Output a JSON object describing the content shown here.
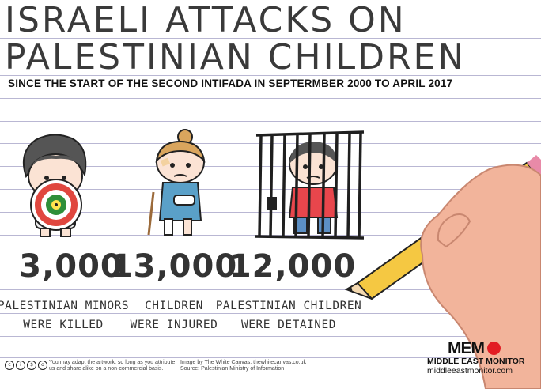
{
  "title": {
    "line1": "ISRAELI ATTACKS ON",
    "line2": "PALESTINIAN CHILDREN"
  },
  "subtitle": "SINCE THE START OF THE SECOND INTIFADA IN SEPTERMBER 2000 TO APRIL 2017",
  "stats": [
    {
      "number": "3,000",
      "label_line1": "PALESTINIAN MINORS",
      "label_line2": "WERE KILLED"
    },
    {
      "number": "13,000",
      "label_line1": "CHILDREN",
      "label_line2": "WERE INJURED"
    },
    {
      "number": "12,000",
      "label_line1": "PALESTINIAN CHILDREN",
      "label_line2": "WERE DETAINED"
    }
  ],
  "footer": {
    "license_line1": "You may adapt the artwork, so long as you attribute",
    "license_line2": "us and share alike on a non-commercial basis.",
    "credit_line1": "Image by The White Canvas: thewhitecanvas.co.uk",
    "credit_line2": "Source: Palestinian Ministry of Information",
    "cc_icons": [
      "cc-icon",
      "by-icon",
      "nc-icon",
      "sa-icon"
    ]
  },
  "branding": {
    "logo": "MEM",
    "name": "MIDDLE EAST MONITOR",
    "url": "middleeastmonitor.com"
  },
  "colors": {
    "rule": "#b9b7d3",
    "target_red": "#e0473f",
    "target_green": "#2f8f3a",
    "pencil_yellow": "#f5c842",
    "skin": "#f2b49b",
    "memo_red": "#e21d24"
  }
}
